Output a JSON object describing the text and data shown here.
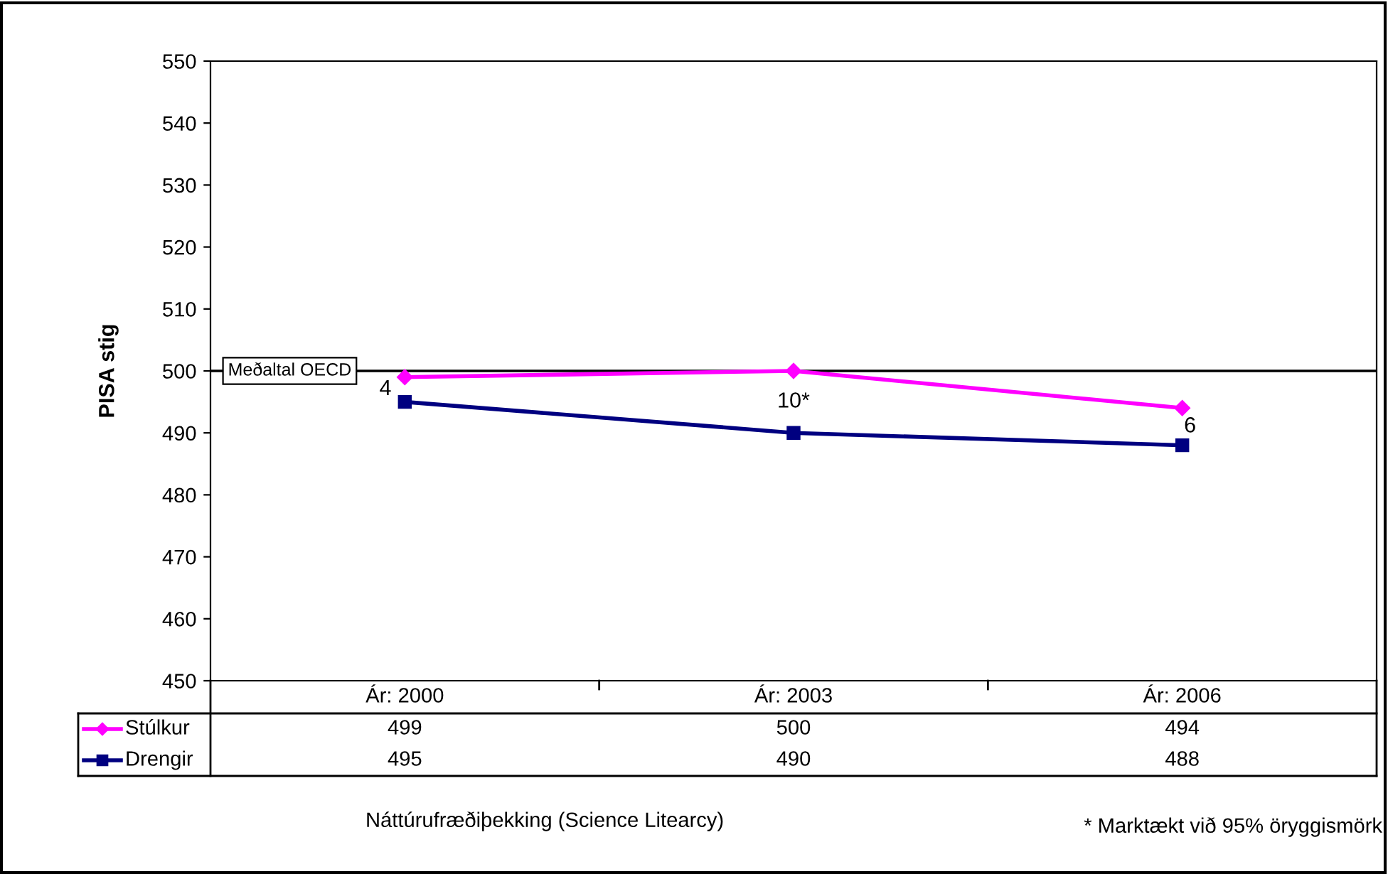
{
  "chart_data": {
    "type": "line",
    "ylabel": "PISA stig",
    "categories": [
      "Ár: 2000",
      "Ár: 2003",
      "Ár: 2006"
    ],
    "series": [
      {
        "name": "Stúlkur",
        "color": "#ff00ff",
        "values": [
          499,
          500,
          494
        ],
        "marker": "diamond"
      },
      {
        "name": "Drengir",
        "color": "#000080",
        "values": [
          495,
          490,
          488
        ],
        "marker": "square"
      }
    ],
    "ylim": [
      450,
      550
    ],
    "yticks": [
      450,
      460,
      470,
      480,
      490,
      500,
      510,
      520,
      530,
      540,
      550
    ],
    "grid": false,
    "legend": "bottom left",
    "data_labels": true,
    "ref_lines": [
      {
        "axis": "y",
        "value": 500,
        "label": "Meðaltal OECD",
        "color": "#000000"
      }
    ],
    "annotations": [
      "4",
      "10*",
      "6",
      "Náttúrufræðiþekking (Science Litearcy)",
      "* Marktækt við 95% öryggismörk"
    ]
  }
}
